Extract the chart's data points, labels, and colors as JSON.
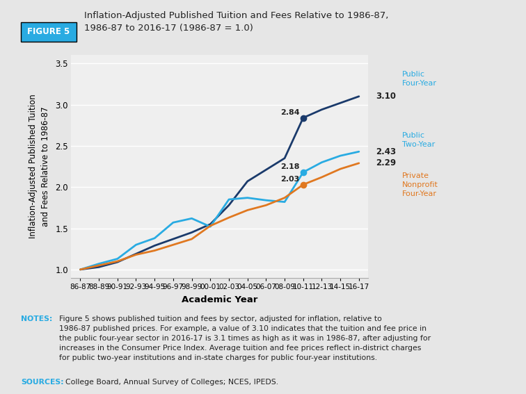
{
  "title_badge": "FIGURE 5",
  "title_text": "Inflation-Adjusted Published Tuition and Fees Relative to 1986-87,\n1986-87 to 2016-17 (1986-87 = 1.0)",
  "xlabel": "Academic Year",
  "ylabel": "Inflation-Adjusted Published Tuition\nand Fees Relative to 1986-87",
  "ylim": [
    0.9,
    3.6
  ],
  "yticks": [
    1.0,
    1.5,
    2.0,
    2.5,
    3.0,
    3.5
  ],
  "background_color": "#e6e6e6",
  "plot_bg_color": "#efefef",
  "x_labels": [
    "86-87",
    "88-89",
    "90-91",
    "92-93",
    "94-95",
    "96-97",
    "98-99",
    "00-01",
    "02-03",
    "04-05",
    "06-07",
    "08-09",
    "10-11",
    "12-13",
    "14-15",
    "16-17"
  ],
  "public_four_year": [
    1.0,
    1.03,
    1.09,
    1.19,
    1.29,
    1.37,
    1.45,
    1.55,
    1.78,
    2.07,
    2.21,
    2.35,
    2.84,
    2.94,
    3.02,
    3.1
  ],
  "public_two_year": [
    1.0,
    1.07,
    1.13,
    1.3,
    1.38,
    1.57,
    1.62,
    1.52,
    1.85,
    1.87,
    1.84,
    1.82,
    2.18,
    2.3,
    2.38,
    2.43
  ],
  "private_nonprofit": [
    1.0,
    1.05,
    1.1,
    1.18,
    1.23,
    1.3,
    1.37,
    1.53,
    1.63,
    1.72,
    1.78,
    1.87,
    2.03,
    2.12,
    2.22,
    2.29
  ],
  "color_dark_blue": "#1a3a6b",
  "color_light_blue": "#29abe2",
  "color_orange": "#e07820",
  "color_badge_bg": "#29abe2",
  "color_cyan_label": "#29abe2",
  "notes_label": "NOTES:",
  "notes_body": "Figure 5 shows published tuition and fees by sector, adjusted for inflation, relative to\n1986-87 published prices. For example, a value of 3.10 indicates that the tuition and fee price in\nthe public four-year sector in 2016-17 is 3.1 times as high as it was in 1986-87, after adjusting for\nincreases in the Consumer Price Index. Average tuition and fee prices reflect in-district charges\nfor public two-year institutions and in-state charges for public four-year institutions.",
  "sources_label": "SOURCES:",
  "sources_body": "College Board, Annual Survey of Colleges; NCES, IPEDS."
}
